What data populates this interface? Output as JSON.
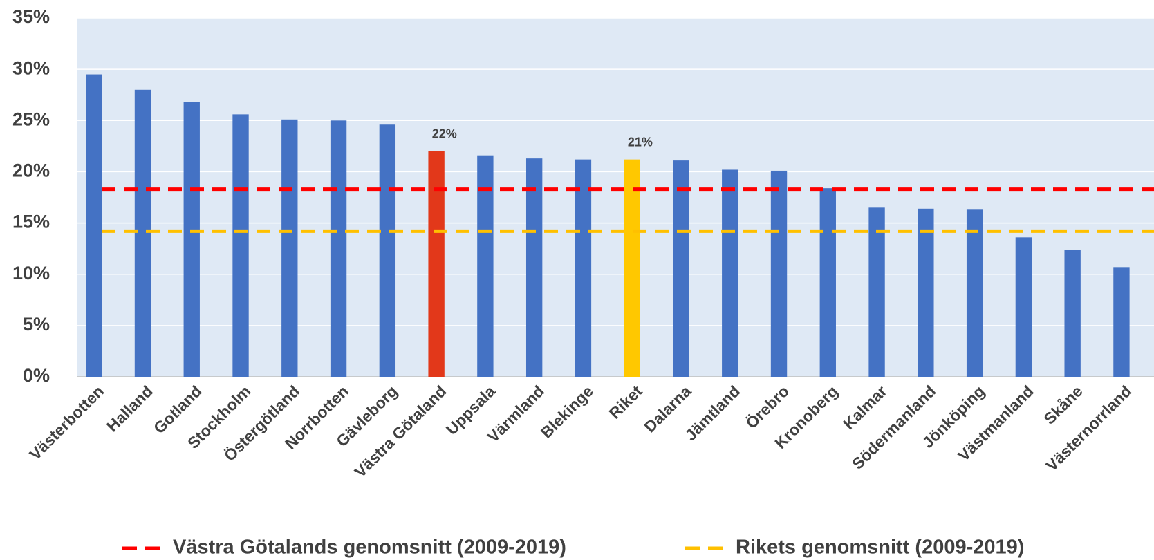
{
  "chart_data": {
    "type": "bar",
    "categories": [
      "Västerbotten",
      "Halland",
      "Gotland",
      "Stockholm",
      "Östergötland",
      "Norrbotten",
      "Gävleborg",
      "Västra Götaland",
      "Uppsala",
      "Värmland",
      "Blekinge",
      "Riket",
      "Dalarna",
      "Jämtland",
      "Örebro",
      "Kronoberg",
      "Kalmar",
      "Södermanland",
      "Jönköping",
      "Västmanland",
      "Skåne",
      "Västernorrland"
    ],
    "values": [
      29.5,
      28.0,
      26.8,
      25.6,
      25.1,
      25.0,
      24.6,
      22.0,
      21.6,
      21.3,
      21.2,
      21.2,
      21.1,
      20.2,
      20.1,
      18.4,
      16.5,
      16.4,
      16.3,
      13.6,
      12.4,
      10.7
    ],
    "value_labels": [
      null,
      null,
      null,
      null,
      null,
      null,
      null,
      "22%",
      null,
      null,
      null,
      "21%",
      null,
      null,
      null,
      null,
      null,
      null,
      null,
      null,
      null,
      null
    ],
    "colors": [
      "#4472c4",
      "#4472c4",
      "#4472c4",
      "#4472c4",
      "#4472c4",
      "#4472c4",
      "#4472c4",
      "#e2381a",
      "#4472c4",
      "#4472c4",
      "#4472c4",
      "#ffc800",
      "#4472c4",
      "#4472c4",
      "#4472c4",
      "#4472c4",
      "#4472c4",
      "#4472c4",
      "#4472c4",
      "#4472c4",
      "#4472c4",
      "#4472c4"
    ],
    "reference_lines": [
      {
        "name": "Västra Götalands genomsnitt (2009-2019)",
        "color": "#ff0000",
        "value": 18.3
      },
      {
        "name": "Rikets genomsnitt (2009-2019)",
        "color": "#ffc000",
        "value": 14.2
      }
    ],
    "ylim": [
      0,
      35
    ],
    "yticks": [
      {
        "value": 0,
        "label": "0%"
      },
      {
        "value": 5,
        "label": "5%"
      },
      {
        "value": 10,
        "label": "10%"
      },
      {
        "value": 15,
        "label": "15%"
      },
      {
        "value": 20,
        "label": "20%"
      },
      {
        "value": 25,
        "label": "25%"
      },
      {
        "value": 30,
        "label": "30%"
      },
      {
        "value": 35,
        "label": "35%"
      }
    ],
    "grid": true
  }
}
